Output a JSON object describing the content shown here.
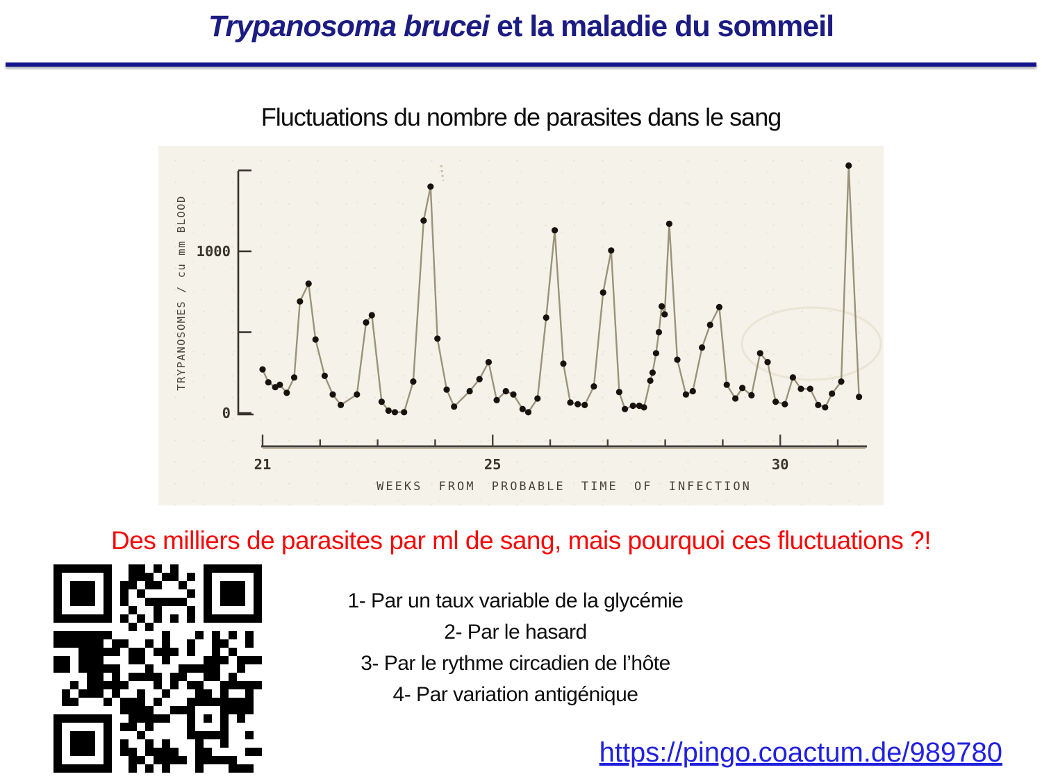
{
  "slide": {
    "title_italic": "Trypanosoma brucei",
    "title_rest": " et la maladie du sommeil",
    "title_color": "#1c1c83",
    "caption": "Fluctuations du nombre de parasites dans le sang",
    "question": "Des milliers de parasites par ml de sang, mais pourquoi ces fluctuations ?!",
    "question_color": "#f70808",
    "options": [
      "1- Par un taux variable de la glycémie",
      "2- Par le hasard",
      "3- Par le rythme circadien de l’hôte",
      "4- Par variation antigénique"
    ],
    "link_text": "https://pingo.coactum.de/989780",
    "link_color": "#2121e0",
    "qr_alt": "qr-code"
  },
  "chart_data": {
    "type": "line",
    "title": "",
    "xlabel": "WEEKS FROM PROBABLE TIME OF INFECTION",
    "ylabel": "TRYPANOSOMES / cu mm  BLOOD",
    "xlim": [
      20.7,
      31.8
    ],
    "ylim": [
      0,
      1550
    ],
    "grid": false,
    "legend": false,
    "marker_color": "#17120d",
    "line_color": "#9b9278",
    "x_ticks": [
      {
        "week": 21,
        "label": "21"
      },
      {
        "week": 22,
        "label": ""
      },
      {
        "week": 23,
        "label": ""
      },
      {
        "week": 24,
        "label": ""
      },
      {
        "week": 25,
        "label": "25"
      },
      {
        "week": 26,
        "label": ""
      },
      {
        "week": 27,
        "label": ""
      },
      {
        "week": 28,
        "label": ""
      },
      {
        "week": 29,
        "label": ""
      },
      {
        "week": 30,
        "label": "30"
      },
      {
        "week": 31,
        "label": ""
      }
    ],
    "y_ticks": [
      {
        "value": 0,
        "label": "0"
      },
      {
        "value": 500,
        "label": ""
      },
      {
        "value": 1000,
        "label": "1000"
      },
      {
        "value": 1500,
        "label": ""
      }
    ],
    "series_name": "trypanosomes per cu mm blood",
    "points": [
      [
        21.0,
        270
      ],
      [
        21.1,
        190
      ],
      [
        21.22,
        160
      ],
      [
        21.3,
        175
      ],
      [
        21.42,
        125
      ],
      [
        21.55,
        220
      ],
      [
        21.65,
        690
      ],
      [
        21.8,
        800
      ],
      [
        21.92,
        455
      ],
      [
        22.08,
        230
      ],
      [
        22.22,
        115
      ],
      [
        22.36,
        50
      ],
      [
        22.64,
        115
      ],
      [
        22.8,
        560
      ],
      [
        22.9,
        605
      ],
      [
        23.07,
        70
      ],
      [
        23.19,
        15
      ],
      [
        23.3,
        5
      ],
      [
        23.46,
        5
      ],
      [
        23.62,
        195
      ],
      [
        23.8,
        1190
      ],
      [
        23.92,
        1400
      ],
      [
        24.04,
        460
      ],
      [
        24.2,
        145
      ],
      [
        24.33,
        40
      ],
      [
        24.6,
        135
      ],
      [
        24.77,
        210
      ],
      [
        24.93,
        315
      ],
      [
        25.07,
        80
      ],
      [
        25.23,
        135
      ],
      [
        25.36,
        115
      ],
      [
        25.52,
        25
      ],
      [
        25.62,
        5
      ],
      [
        25.78,
        90
      ],
      [
        25.93,
        590
      ],
      [
        26.08,
        1130
      ],
      [
        26.23,
        305
      ],
      [
        26.35,
        65
      ],
      [
        26.48,
        55
      ],
      [
        26.6,
        50
      ],
      [
        26.76,
        165
      ],
      [
        26.92,
        745
      ],
      [
        27.06,
        1005
      ],
      [
        27.2,
        130
      ],
      [
        27.3,
        25
      ],
      [
        27.44,
        45
      ],
      [
        27.55,
        45
      ],
      [
        27.63,
        35
      ],
      [
        27.74,
        200
      ],
      [
        27.78,
        250
      ],
      [
        27.84,
        370
      ],
      [
        27.89,
        500
      ],
      [
        27.94,
        660
      ],
      [
        27.99,
        610
      ],
      [
        28.07,
        1170
      ],
      [
        28.21,
        330
      ],
      [
        28.36,
        115
      ],
      [
        28.48,
        135
      ],
      [
        28.64,
        405
      ],
      [
        28.78,
        545
      ],
      [
        28.94,
        655
      ],
      [
        29.07,
        175
      ],
      [
        29.22,
        90
      ],
      [
        29.34,
        155
      ],
      [
        29.5,
        110
      ],
      [
        29.65,
        370
      ],
      [
        29.78,
        315
      ],
      [
        29.92,
        70
      ],
      [
        30.08,
        55
      ],
      [
        30.22,
        220
      ],
      [
        30.36,
        150
      ],
      [
        30.52,
        150
      ],
      [
        30.66,
        50
      ],
      [
        30.78,
        35
      ],
      [
        30.9,
        120
      ],
      [
        31.06,
        195
      ],
      [
        31.19,
        1530
      ],
      [
        31.37,
        100
      ]
    ]
  }
}
